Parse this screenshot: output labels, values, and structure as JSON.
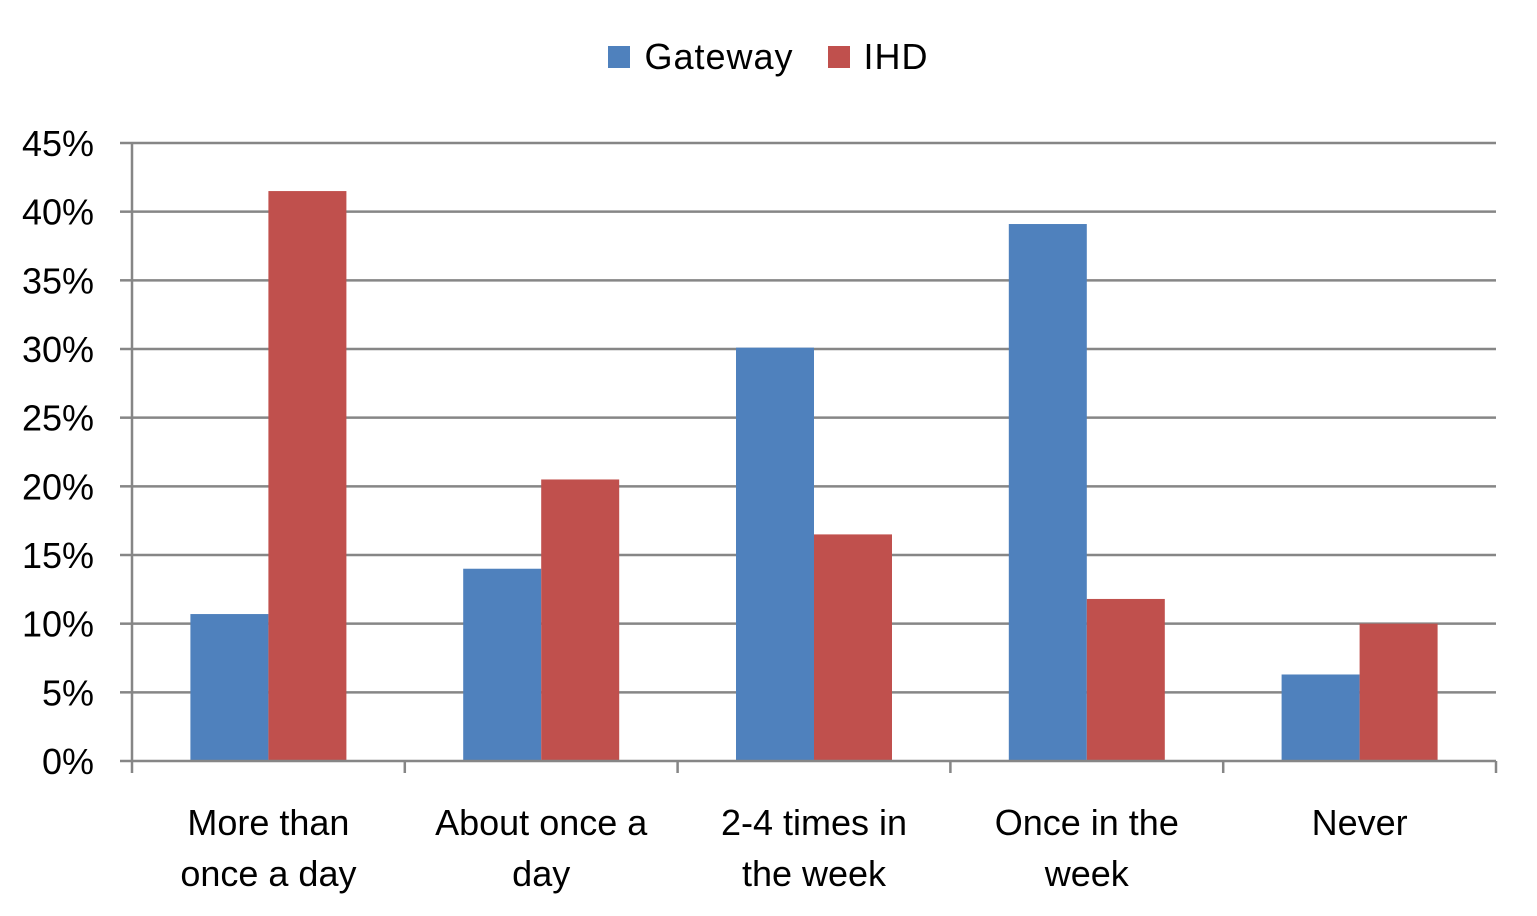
{
  "chart_data": {
    "type": "bar",
    "title": "",
    "xlabel": "",
    "ylabel": "",
    "categories": [
      [
        "More than",
        "once a day"
      ],
      [
        "About once a",
        "day"
      ],
      [
        "2-4 times in",
        "the week"
      ],
      [
        "Once in the",
        "week"
      ],
      [
        "Never"
      ]
    ],
    "series": [
      {
        "name": "Gateway",
        "color": "#4F81BD",
        "values": [
          10.7,
          14.0,
          30.1,
          39.1,
          6.3
        ]
      },
      {
        "name": "IHD",
        "color": "#C0504D",
        "values": [
          41.5,
          20.5,
          16.5,
          11.8,
          10.0
        ]
      }
    ],
    "ylim": [
      0,
      45
    ],
    "yticks": [
      0,
      5,
      10,
      15,
      20,
      25,
      30,
      35,
      40,
      45
    ],
    "ytick_format": "percent",
    "grid": true,
    "legend_position": "top-center"
  }
}
